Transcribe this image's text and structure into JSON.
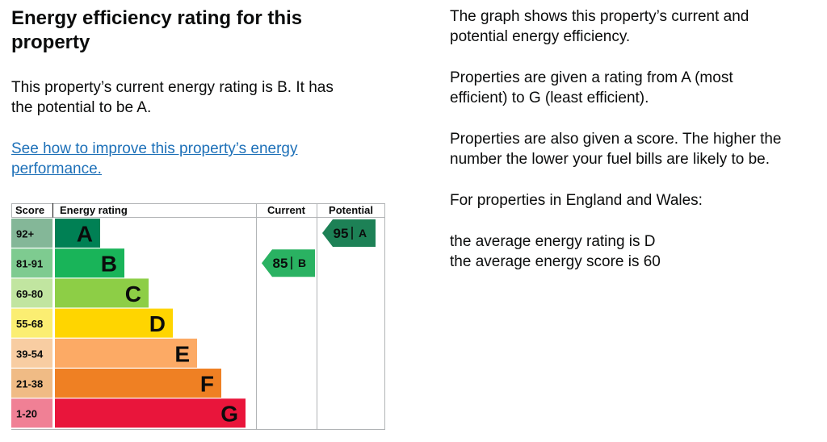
{
  "page": {
    "background": "#ffffff",
    "text_color": "#0b0c0c",
    "link_color": "#1d70b8",
    "border_color": "#b1b4b6"
  },
  "left": {
    "heading": {
      "lines": [
        "Energy efficiency rating for this",
        "property"
      ]
    },
    "intro": {
      "lines": [
        "This property’s current energy rating is B. It has",
        "the potential to be A."
      ]
    },
    "improve_link": {
      "lines": [
        "See how to improve this property’s energy",
        "performance."
      ]
    }
  },
  "right": {
    "paragraphs": [
      {
        "lines": [
          "The graph shows this property’s current and",
          "potential energy efficiency."
        ]
      },
      {
        "lines": [
          "Properties are given a rating from A (most",
          "efficient) to G (least efficient)."
        ]
      },
      {
        "lines": [
          "Properties are also given a score. The higher the",
          "number the lower your fuel bills are likely to be."
        ]
      },
      {
        "lines": [
          "For properties in England and Wales:"
        ]
      },
      {
        "lines": [
          "the average energy rating is D",
          "the average energy score is 60"
        ]
      }
    ]
  },
  "chart_data": {
    "type": "bar",
    "title": "Energy efficiency rating for this property",
    "columns": {
      "score": "Score",
      "rating": "Energy rating",
      "current": "Current",
      "potential": "Potential"
    },
    "bands": [
      {
        "letter": "A",
        "score_range": "92+",
        "color": "#008054",
        "score_cell_color": "#84b798"
      },
      {
        "letter": "B",
        "score_range": "81-91",
        "color": "#19b459",
        "score_cell_color": "#7ecb90"
      },
      {
        "letter": "C",
        "score_range": "69-80",
        "color": "#8dce46",
        "score_cell_color": "#c1e5a0"
      },
      {
        "letter": "D",
        "score_range": "55-68",
        "color": "#ffd500",
        "score_cell_color": "#fbee72"
      },
      {
        "letter": "E",
        "score_range": "39-54",
        "color": "#fcaa65",
        "score_cell_color": "#f8cda2"
      },
      {
        "letter": "F",
        "score_range": "21-38",
        "color": "#ef8023",
        "score_cell_color": "#f0bb85"
      },
      {
        "letter": "G",
        "score_range": "1-20",
        "color": "#e9153b",
        "score_cell_color": "#f08095"
      }
    ],
    "current": {
      "score": "85",
      "band": "B",
      "band_index": 1,
      "color": "#2ab262"
    },
    "potential": {
      "score": "95",
      "band": "A",
      "band_index": 0,
      "color": "#1d8156"
    },
    "border_color": "#b1b4b6",
    "legend_position": "none",
    "grid": false
  }
}
